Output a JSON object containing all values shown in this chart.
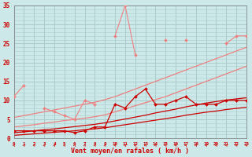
{
  "xlabel": "Vent moyen/en rafales ( km/h )",
  "x": [
    0,
    1,
    2,
    3,
    4,
    5,
    6,
    7,
    8,
    9,
    10,
    11,
    12,
    13,
    14,
    15,
    16,
    17,
    18,
    19,
    20,
    21,
    22,
    23
  ],
  "background_color": "#cce8e8",
  "grid_color": "#aacccc",
  "ylim": [
    0,
    35
  ],
  "xlim": [
    0,
    23
  ],
  "yticks": [
    0,
    5,
    10,
    15,
    20,
    25,
    30,
    35
  ],
  "series": [
    {
      "color": "#f08080",
      "lw": 0.8,
      "marker": "D",
      "markersize": 2.0,
      "y": [
        11,
        14,
        null,
        8,
        7,
        6,
        5,
        10,
        9,
        null,
        27,
        35,
        22,
        null,
        null,
        26,
        null,
        26,
        null,
        null,
        null,
        25,
        27,
        27
      ]
    },
    {
      "color": "#f08080",
      "lw": 0.9,
      "marker": null,
      "y": [
        5.5,
        6.0,
        6.5,
        7.0,
        7.5,
        8.0,
        8.5,
        9.0,
        9.5,
        10.2,
        11.0,
        12.0,
        13.0,
        14.0,
        15.0,
        16.0,
        17.0,
        18.0,
        19.0,
        20.0,
        21.0,
        22.0,
        23.0,
        24.0
      ]
    },
    {
      "color": "#f08080",
      "lw": 0.9,
      "marker": null,
      "y": [
        3.0,
        3.3,
        3.6,
        4.0,
        4.3,
        4.7,
        5.0,
        5.3,
        5.7,
        6.2,
        7.0,
        7.8,
        8.6,
        9.4,
        10.2,
        11.0,
        12.0,
        13.0,
        14.0,
        15.0,
        16.0,
        17.0,
        18.0,
        19.0
      ]
    },
    {
      "color": "#cc0000",
      "lw": 0.9,
      "marker": "D",
      "markersize": 2.0,
      "y": [
        2,
        2,
        2,
        2,
        2,
        2,
        1.5,
        2,
        3,
        3,
        9,
        8,
        11,
        13,
        9,
        9,
        10,
        11,
        9,
        9,
        9,
        10,
        10,
        10
      ]
    },
    {
      "color": "#cc0000",
      "lw": 0.9,
      "marker": null,
      "y": [
        1.5,
        1.7,
        2.0,
        2.3,
        2.5,
        2.8,
        3.1,
        3.4,
        3.7,
        4.1,
        4.6,
        5.1,
        5.6,
        6.1,
        6.7,
        7.2,
        7.7,
        8.3,
        8.8,
        9.3,
        9.7,
        10.1,
        10.4,
        10.7
      ]
    },
    {
      "color": "#cc0000",
      "lw": 0.9,
      "marker": null,
      "y": [
        0.8,
        1.0,
        1.2,
        1.4,
        1.6,
        1.8,
        2.0,
        2.3,
        2.5,
        2.8,
        3.2,
        3.6,
        4.0,
        4.4,
        4.8,
        5.2,
        5.6,
        6.1,
        6.5,
        6.9,
        7.2,
        7.6,
        7.9,
        8.2
      ]
    }
  ],
  "arrow_color": "#cc0000",
  "axis_label_color": "#cc0000",
  "tick_color": "#cc0000"
}
